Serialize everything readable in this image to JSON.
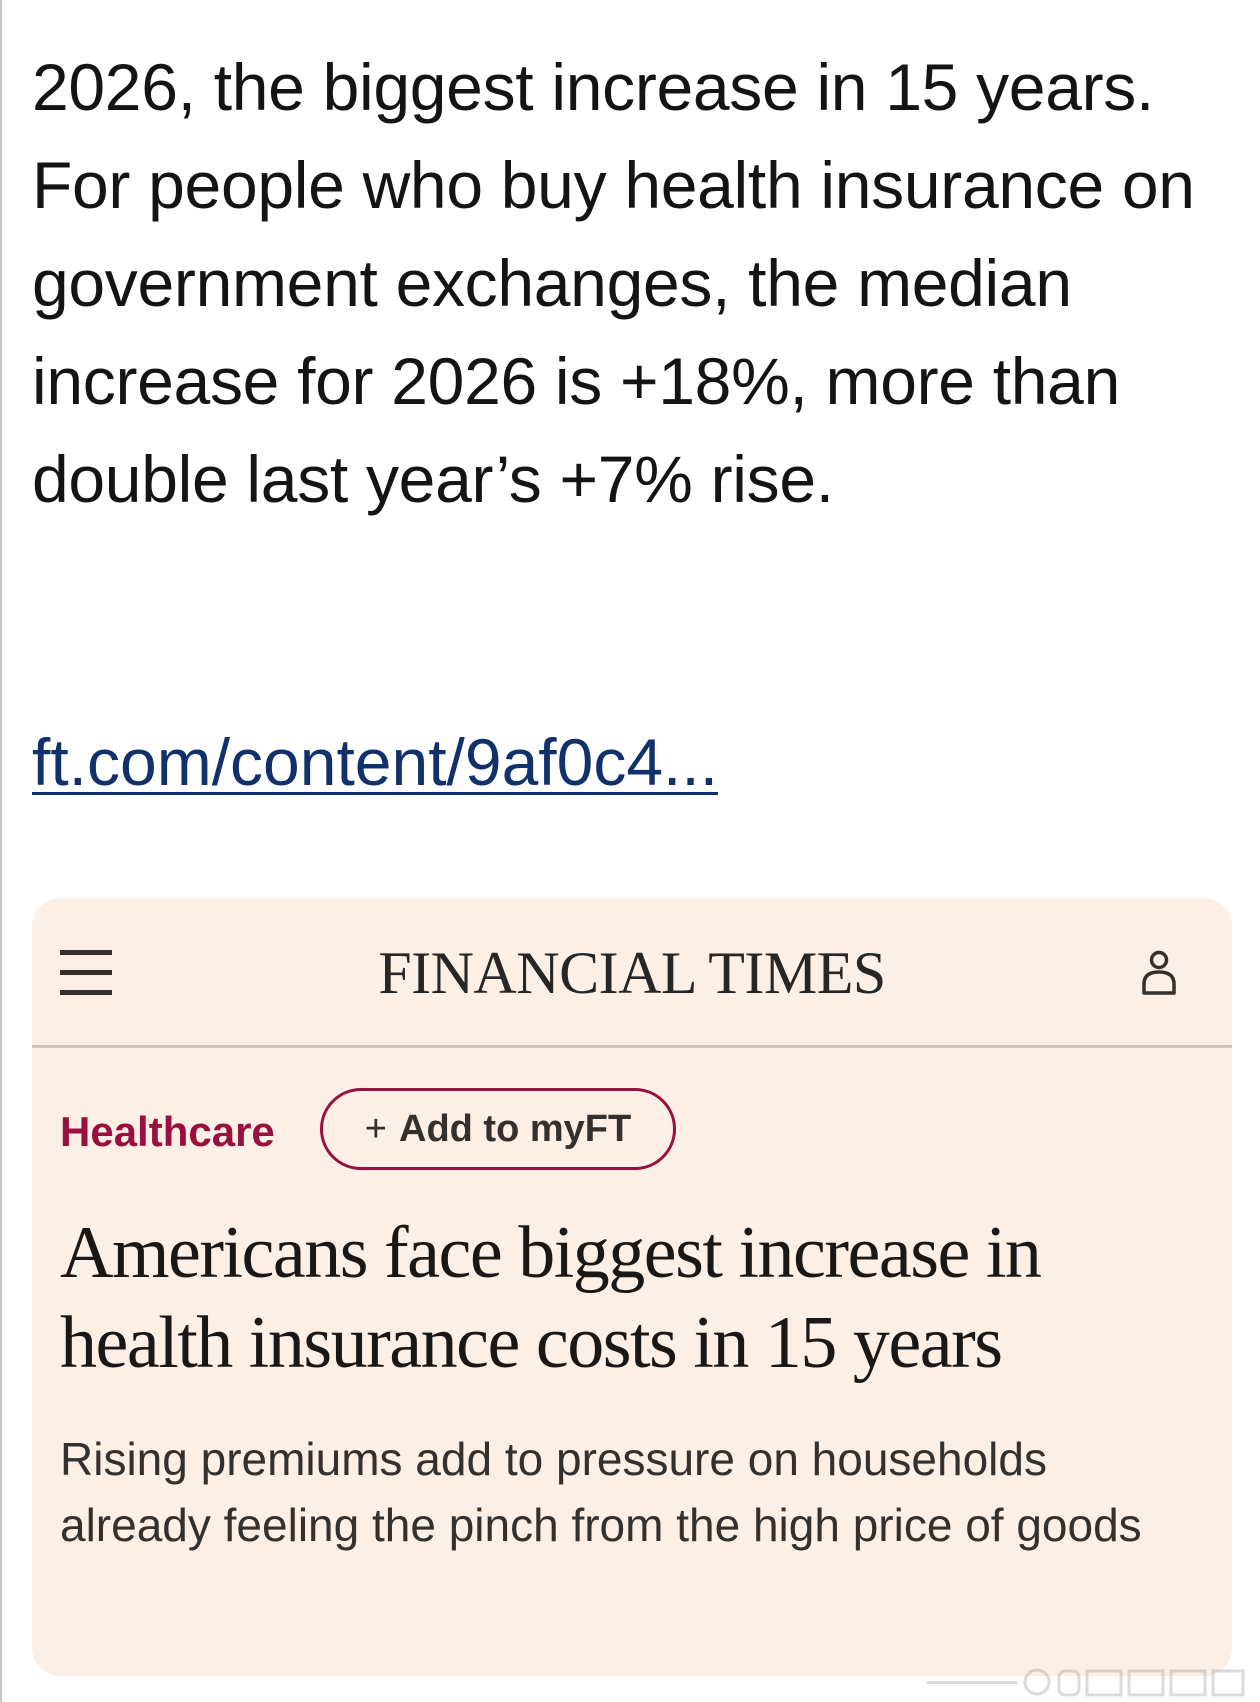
{
  "post": {
    "text": "2026, the biggest increase in 15 years. For people who buy health insurance on government exchanges, the median increase for 2026 is +18%, more than double last year’s +7% rise.",
    "link": "ft.com/content/9af0c4..."
  },
  "card": {
    "brand": "FINANCIAL TIMES",
    "menu_icon": "hamburger-menu-icon",
    "user_icon": "user-account-icon",
    "section": "Healthcare",
    "myft_button": {
      "plus": "+",
      "label": "Add to myFT"
    },
    "headline": "Americans face biggest increase in health insurance costs in 15 years",
    "standfirst": "Rising premiums add to pressure on households already feeling the pinch from the high price of goods",
    "colors": {
      "background": "#fcefe6",
      "claret": "#990f3d",
      "text": "#33302e",
      "link": "#10316b"
    }
  }
}
